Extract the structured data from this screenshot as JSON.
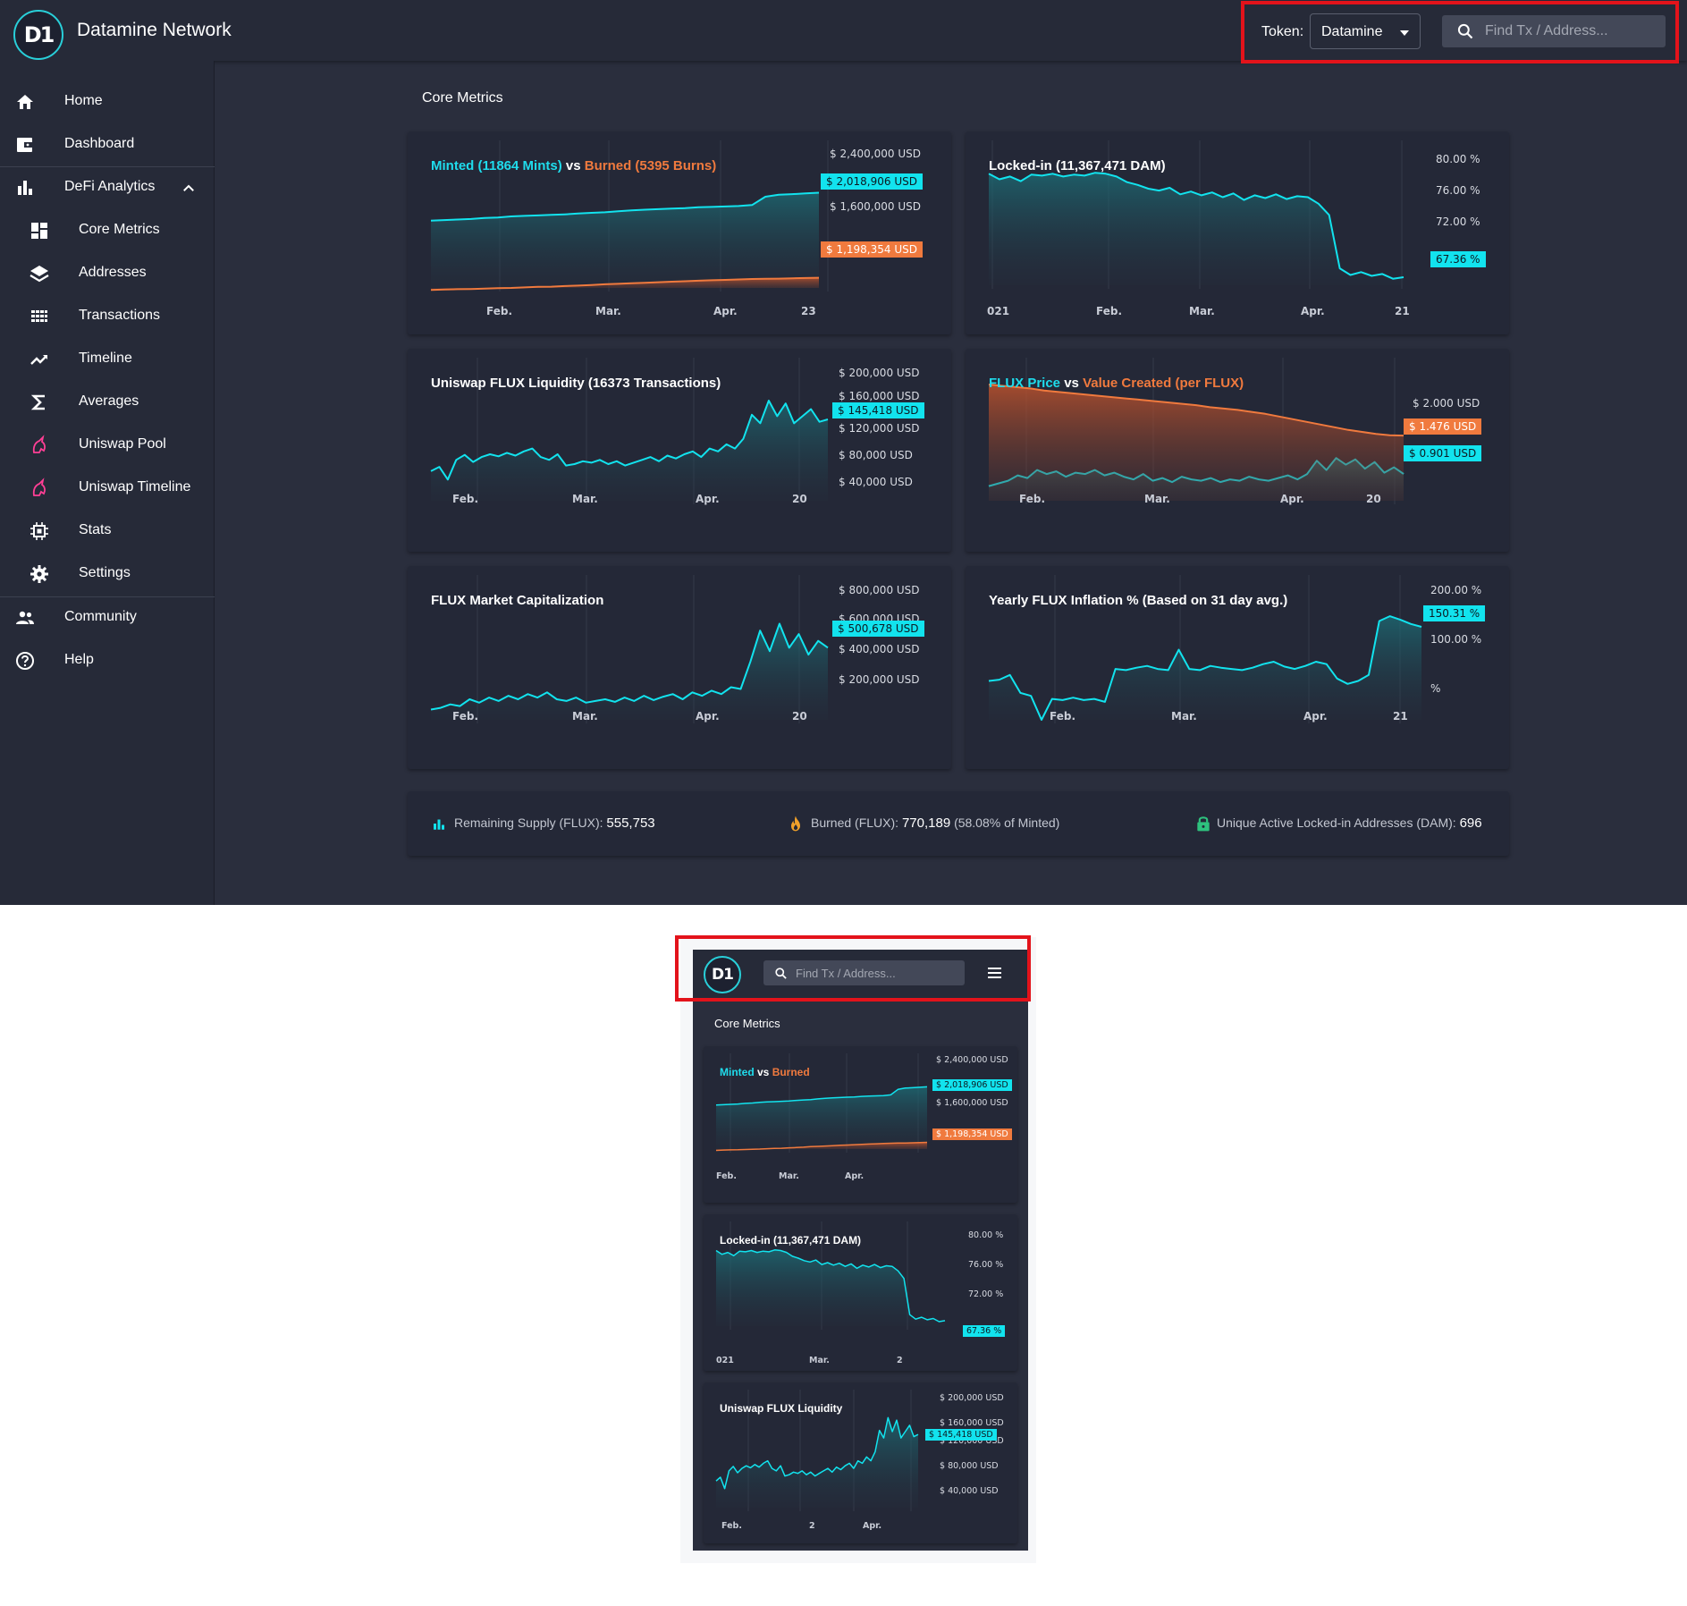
{
  "app": {
    "title": "Datamine Network",
    "logo_text": "D1"
  },
  "header": {
    "token_label": "Token:",
    "token_value": "Datamine",
    "search_placeholder": "Find Tx / Address..."
  },
  "sidebar": {
    "items": [
      {
        "label": "Home",
        "icon": "home-icon"
      },
      {
        "label": "Dashboard",
        "icon": "wallet-icon"
      },
      {
        "label": "DeFi Analytics",
        "icon": "bar-chart-icon"
      },
      {
        "label": "Core Metrics",
        "icon": "dashboard-grid-icon"
      },
      {
        "label": "Addresses",
        "icon": "layers-icon"
      },
      {
        "label": "Transactions",
        "icon": "grid-dots-icon"
      },
      {
        "label": "Timeline",
        "icon": "trending-up-icon"
      },
      {
        "label": "Averages",
        "icon": "sigma-icon"
      },
      {
        "label": "Uniswap Pool",
        "icon": "unicorn-icon"
      },
      {
        "label": "Uniswap Timeline",
        "icon": "unicorn-icon"
      },
      {
        "label": "Stats",
        "icon": "chip-icon"
      },
      {
        "label": "Settings",
        "icon": "gear-icon"
      },
      {
        "label": "Community",
        "icon": "people-icon"
      },
      {
        "label": "Help",
        "icon": "help-circle-icon"
      }
    ]
  },
  "main": {
    "title": "Core Metrics"
  },
  "colors": {
    "cyan": "#12e3ee",
    "orange": "#f07a3e",
    "card_bg": "#242837",
    "page_bg": "#2a2e3d",
    "highlight_box": "#e3131b"
  },
  "chart_data": [
    {
      "id": "minted-burned",
      "type": "area",
      "title_parts": [
        "Minted (11864 Mints)",
        " vs ",
        "Burned (5395 Burns)"
      ],
      "x_ticks": [
        "Feb.",
        "Mar.",
        "Apr.",
        "23"
      ],
      "y_ticks": [
        "$ 2,400,000 USD",
        "$ 1,600,000 USD"
      ],
      "ylim": [
        1100000,
        2420000
      ],
      "series": [
        {
          "name": "Minted (11864 Mints)",
          "color": "#12e3ee",
          "values": [
            1750000,
            1755000,
            1760000,
            1765000,
            1775000,
            1780000,
            1790000,
            1795000,
            1800000,
            1805000,
            1810000,
            1818000,
            1825000,
            1830000,
            1840000,
            1848000,
            1855000,
            1860000,
            1865000,
            1870000,
            1878000,
            1882000,
            1886000,
            1890000,
            1900000,
            1980000,
            2000000,
            2005000,
            2012000,
            2018906
          ]
        },
        {
          "name": "Burned (5395 Burns)",
          "color": "#f07a3e",
          "values": [
            1080000,
            1085000,
            1088000,
            1090000,
            1094000,
            1098000,
            1100000,
            1105000,
            1110000,
            1112000,
            1118000,
            1122000,
            1128000,
            1135000,
            1140000,
            1145000,
            1150000,
            1155000,
            1160000,
            1165000,
            1170000,
            1174000,
            1178000,
            1182000,
            1186000,
            1188000,
            1190000,
            1193000,
            1196000,
            1198354
          ]
        }
      ],
      "last_values": [
        "$ 2,018,906 USD",
        "$ 1,198,354 USD"
      ]
    },
    {
      "id": "locked-in",
      "type": "area",
      "title_parts": [
        "Locked-in (11,367,471 DAM)"
      ],
      "x_ticks": [
        "021",
        "Feb.",
        "Mar.",
        "Apr.",
        "21"
      ],
      "y_ticks": [
        "80.00 %",
        "76.00 %",
        "72.00 %"
      ],
      "ylim": [
        66.5,
        81
      ],
      "series": [
        {
          "name": "Locked-in (11,367,471 DAM)",
          "color": "#12e3ee",
          "values": [
            78.4,
            77.8,
            78.1,
            77.6,
            78.3,
            78.2,
            78.4,
            78.1,
            78.3,
            78.2,
            78.5,
            78.4,
            78.1,
            77.5,
            77.2,
            76.8,
            76.6,
            76.9,
            76.2,
            76.5,
            76.1,
            76.4,
            75.9,
            76.3,
            75.6,
            76.1,
            75.8,
            76.2,
            75.7,
            76.0,
            75.9,
            75.2,
            74.0,
            68.3,
            67.6,
            67.9,
            67.5,
            67.7,
            67.2,
            67.36
          ]
        }
      ],
      "last_values": [
        "67.36 %"
      ]
    },
    {
      "id": "uniswap-liquidity",
      "type": "area",
      "title_parts": [
        "Uniswap FLUX Liquidity (16373 Transactions)"
      ],
      "x_ticks": [
        "Feb.",
        "Mar.",
        "Apr.",
        "20"
      ],
      "y_ticks": [
        "$ 200,000 USD",
        "$ 160,000 USD",
        "$ 120,000 USD",
        "$ 80,000 USD",
        "$ 40,000 USD"
      ],
      "ylim": [
        30000,
        205000
      ],
      "series": [
        {
          "name": "Uniswap FLUX Liquidity (16373 Transactions)",
          "color": "#12e3ee",
          "values": [
            72000,
            78000,
            60000,
            88000,
            95000,
            85000,
            92000,
            96000,
            93000,
            98000,
            94000,
            100000,
            104000,
            92000,
            88000,
            96000,
            80000,
            82000,
            86000,
            84000,
            88000,
            82000,
            86000,
            80000,
            84000,
            88000,
            92000,
            86000,
            94000,
            90000,
            96000,
            100000,
            92000,
            104000,
            100000,
            110000,
            104000,
            118000,
            152000,
            140000,
            172000,
            150000,
            168000,
            140000,
            150000,
            160000,
            142000,
            145418
          ]
        }
      ],
      "last_values": [
        "$ 145,418 USD"
      ]
    },
    {
      "id": "flux-price",
      "type": "area",
      "title_parts": [
        "FLUX Price",
        " vs ",
        "Value Created (per FLUX)"
      ],
      "x_ticks": [
        "Feb.",
        "Mar.",
        "Apr.",
        "20"
      ],
      "y_ticks": [
        "$ 2.000 USD"
      ],
      "ylim": [
        0.5,
        2.4
      ],
      "series": [
        {
          "name": "FLUX Price",
          "color": "#12e3ee",
          "values": [
            0.72,
            0.76,
            0.8,
            0.88,
            0.84,
            0.96,
            0.9,
            0.94,
            0.86,
            0.92,
            0.9,
            0.96,
            0.88,
            0.92,
            0.86,
            0.82,
            0.9,
            0.8,
            0.84,
            0.78,
            0.86,
            0.82,
            0.8,
            0.84,
            0.78,
            0.82,
            0.8,
            0.86,
            0.82,
            0.8,
            0.84,
            0.88,
            0.82,
            0.9,
            1.1,
            0.96,
            1.14,
            1.04,
            1.12,
            0.98,
            1.08,
            0.92,
            1.0,
            0.901
          ]
        },
        {
          "name": "Value Created (per FLUX)",
          "color": "#f07a3e",
          "values": [
            2.24,
            2.22,
            2.2,
            2.18,
            2.15,
            2.13,
            2.11,
            2.09,
            2.07,
            2.05,
            2.03,
            2.01,
            1.99,
            1.97,
            1.95,
            1.93,
            1.9,
            1.88,
            1.86,
            1.83,
            1.8,
            1.76,
            1.72,
            1.68,
            1.64,
            1.6,
            1.56,
            1.53,
            1.5,
            1.48,
            1.476
          ]
        }
      ],
      "last_values": [
        "$ 1.476 USD",
        "$ 0.901 USD"
      ]
    },
    {
      "id": "market-cap",
      "type": "area",
      "title_parts": [
        "FLUX Market Capitalization"
      ],
      "x_ticks": [
        "Feb.",
        "Mar.",
        "Apr.",
        "20"
      ],
      "y_ticks": [
        "$ 800,000 USD",
        "$ 600,000 USD",
        "$ 400,000 USD",
        "$ 200,000 USD"
      ],
      "ylim": [
        80000,
        820000
      ],
      "series": [
        {
          "name": "FLUX Market Capitalization",
          "color": "#12e3ee",
          "values": [
            140000,
            150000,
            170000,
            160000,
            200000,
            180000,
            210000,
            190000,
            220000,
            200000,
            230000,
            210000,
            240000,
            200000,
            190000,
            210000,
            180000,
            190000,
            200000,
            185000,
            210000,
            190000,
            220000,
            195000,
            215000,
            230000,
            200000,
            240000,
            220000,
            250000,
            230000,
            270000,
            260000,
            420000,
            600000,
            480000,
            640000,
            500000,
            580000,
            460000,
            540000,
            500678
          ]
        }
      ],
      "last_values": [
        "$ 500,678 USD"
      ]
    },
    {
      "id": "inflation",
      "type": "area",
      "title_parts": [
        "Yearly FLUX Inflation % (Based on 31 day avg.)"
      ],
      "x_ticks": [
        "Feb.",
        "Mar.",
        "Apr.",
        "21"
      ],
      "y_ticks": [
        "200.00 %",
        "100.00 %",
        "%"
      ],
      "ylim": [
        -5,
        210
      ],
      "series": [
        {
          "name": "Yearly FLUX Inflation % (Based on 31 day avg.)",
          "color": "#12e3ee",
          "values": [
            60,
            62,
            70,
            40,
            35,
            -5,
            30,
            28,
            32,
            28,
            30,
            25,
            80,
            78,
            82,
            85,
            80,
            78,
            112,
            80,
            78,
            85,
            82,
            80,
            78,
            82,
            88,
            92,
            84,
            80,
            85,
            92,
            88,
            64,
            55,
            60,
            70,
            160,
            168,
            162,
            155,
            150.31
          ]
        }
      ],
      "last_values": [
        "150.31 %"
      ]
    }
  ],
  "mobile_titles": {
    "minted_burned": [
      "Minted",
      " vs ",
      "Burned"
    ],
    "locked_in": "Locked-in (11,367,471 DAM)",
    "uniswap": "Uniswap FLUX Liquidity",
    "minted_x_ticks": [
      "Feb.",
      "Mar.",
      "Apr."
    ],
    "locked_x_ticks": [
      "021",
      "Mar.",
      "2"
    ],
    "uniswap_x_ticks": [
      "Feb.",
      "2",
      "Apr."
    ]
  },
  "stats": {
    "remaining_label": "Remaining Supply (FLUX):",
    "remaining_value": "555,753",
    "burned_label": "Burned (FLUX):",
    "burned_value": "770,189",
    "burned_pct": "(58.08% of Minted)",
    "locked_label": "Unique Active Locked-in Addresses (DAM):",
    "locked_value": "696"
  }
}
